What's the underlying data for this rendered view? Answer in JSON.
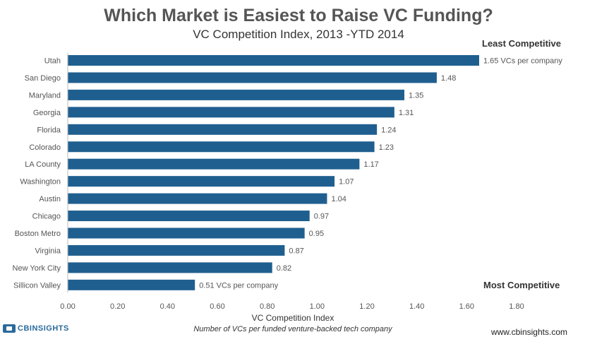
{
  "header": {
    "title": "Which Market is Easiest to Raise VC Funding?",
    "subtitle": "VC Competition Index, 2013 -YTD 2014"
  },
  "annotations": {
    "least": "Least Competitive",
    "most": "Most Competitive"
  },
  "chart_data": {
    "type": "bar",
    "orientation": "horizontal",
    "categories": [
      "Utah",
      "San Diego",
      "Maryland",
      "Georgia",
      "Florida",
      "Colorado",
      "LA County",
      "Washington",
      "Austin",
      "Chicago",
      "Boston Metro",
      "Virginia",
      "New  York City",
      "Sillicon Valley"
    ],
    "values": [
      1.65,
      1.48,
      1.35,
      1.31,
      1.24,
      1.23,
      1.17,
      1.07,
      1.04,
      0.97,
      0.95,
      0.87,
      0.82,
      0.51
    ],
    "value_labels": [
      "1.65 VCs per company",
      "1.48",
      "1.35",
      "1.31",
      "1.24",
      "1.23",
      "1.17",
      "1.07",
      "1.04",
      "0.97",
      "0.95",
      "0.87",
      "0.82",
      "0.51 VCs per company"
    ],
    "xlabel": "VC Competition  Index",
    "xlabel_note": "Number of VCs per funded venture-backed tech company",
    "xlim": [
      0,
      1.8
    ],
    "xticks": [
      "0.00",
      "0.20",
      "0.40",
      "0.60",
      "0.80",
      "1.00",
      "1.20",
      "1.40",
      "1.60",
      "1.80"
    ],
    "grid": false,
    "bar_color": "#1f5f8f"
  },
  "footer": {
    "logo_text": "CBINSIGHTS",
    "website": "www.cbinsights.com"
  }
}
